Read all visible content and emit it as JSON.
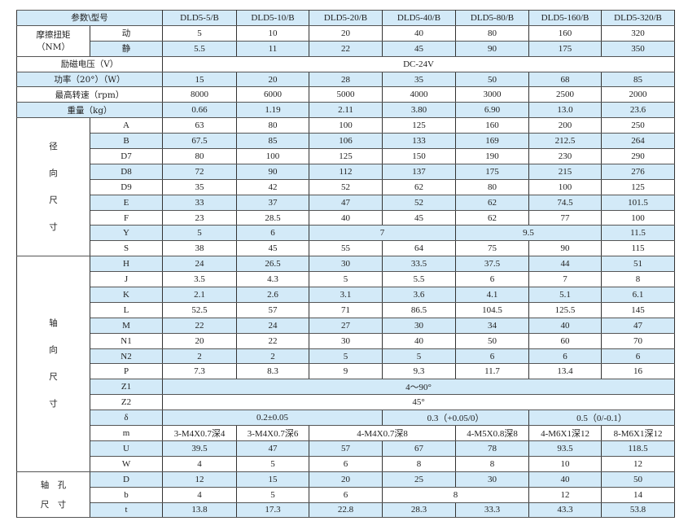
{
  "header": {
    "label": "参数\\型号",
    "models": [
      "DLD5-5/B",
      "DLD5-10/B",
      "DLD5-20/B",
      "DLD5-40/B",
      "DLD5-80/B",
      "DLD5-160/B",
      "DLD5-320/B"
    ]
  },
  "colors": {
    "row_highlight": "#d3eaf8",
    "border": "#333333"
  },
  "torque": {
    "label": "摩擦扭矩\n（NM）",
    "rows": [
      {
        "sub": "动",
        "cells": [
          {
            "v": "5"
          },
          {
            "v": "10"
          },
          {
            "v": "20"
          },
          {
            "v": "40"
          },
          {
            "v": "80"
          },
          {
            "v": "160"
          },
          {
            "v": "320"
          }
        ]
      },
      {
        "sub": "静",
        "cells": [
          {
            "v": "5.5"
          },
          {
            "v": "11"
          },
          {
            "v": "22"
          },
          {
            "v": "45"
          },
          {
            "v": "90"
          },
          {
            "v": "175"
          },
          {
            "v": "350"
          }
        ]
      }
    ]
  },
  "general": [
    {
      "label": "励磁电压（V）",
      "cells": [
        {
          "v": "DC-24V",
          "span": 7
        }
      ]
    },
    {
      "label": "功率（20°）（W）",
      "cells": [
        {
          "v": "15"
        },
        {
          "v": "20"
        },
        {
          "v": "28"
        },
        {
          "v": "35"
        },
        {
          "v": "50"
        },
        {
          "v": "68"
        },
        {
          "v": "85"
        }
      ]
    },
    {
      "label": "最高转速（rpm）",
      "cells": [
        {
          "v": "8000"
        },
        {
          "v": "6000"
        },
        {
          "v": "5000"
        },
        {
          "v": "4000"
        },
        {
          "v": "3000"
        },
        {
          "v": "2500"
        },
        {
          "v": "2000"
        }
      ]
    },
    {
      "label": "重量（kg）",
      "cells": [
        {
          "v": "0.66"
        },
        {
          "v": "1.19"
        },
        {
          "v": "2.11"
        },
        {
          "v": "3.80"
        },
        {
          "v": "6.90"
        },
        {
          "v": "13.0"
        },
        {
          "v": "23.6"
        }
      ]
    }
  ],
  "sections": [
    {
      "label": "径\n\n向\n\n尺\n\n寸",
      "rows": [
        {
          "sub": "A",
          "cells": [
            {
              "v": "63"
            },
            {
              "v": "80"
            },
            {
              "v": "100"
            },
            {
              "v": "125"
            },
            {
              "v": "160"
            },
            {
              "v": "200"
            },
            {
              "v": "250"
            }
          ]
        },
        {
          "sub": "B",
          "cells": [
            {
              "v": "67.5"
            },
            {
              "v": "85"
            },
            {
              "v": "106"
            },
            {
              "v": "133"
            },
            {
              "v": "169"
            },
            {
              "v": "212.5"
            },
            {
              "v": "264"
            }
          ]
        },
        {
          "sub": "D7",
          "cells": [
            {
              "v": "80"
            },
            {
              "v": "100"
            },
            {
              "v": "125"
            },
            {
              "v": "150"
            },
            {
              "v": "190"
            },
            {
              "v": "230"
            },
            {
              "v": "290"
            }
          ]
        },
        {
          "sub": "D8",
          "cells": [
            {
              "v": "72"
            },
            {
              "v": "90"
            },
            {
              "v": "112"
            },
            {
              "v": "137"
            },
            {
              "v": "175"
            },
            {
              "v": "215"
            },
            {
              "v": "276"
            }
          ]
        },
        {
          "sub": "D9",
          "cells": [
            {
              "v": "35"
            },
            {
              "v": "42"
            },
            {
              "v": "52"
            },
            {
              "v": "62"
            },
            {
              "v": "80"
            },
            {
              "v": "100"
            },
            {
              "v": "125"
            }
          ]
        },
        {
          "sub": "E",
          "cells": [
            {
              "v": "33"
            },
            {
              "v": "37"
            },
            {
              "v": "47"
            },
            {
              "v": "52"
            },
            {
              "v": "62"
            },
            {
              "v": "74.5"
            },
            {
              "v": "101.5"
            }
          ]
        },
        {
          "sub": "F",
          "cells": [
            {
              "v": "23"
            },
            {
              "v": "28.5"
            },
            {
              "v": "40"
            },
            {
              "v": "45"
            },
            {
              "v": "62"
            },
            {
              "v": "77"
            },
            {
              "v": "100"
            }
          ]
        },
        {
          "sub": "Y",
          "cells": [
            {
              "v": "5"
            },
            {
              "v": "6"
            },
            {
              "v": "7",
              "span": 2
            },
            {
              "v": "9.5",
              "span": 2
            },
            {
              "v": "11.5"
            }
          ]
        },
        {
          "sub": "S",
          "cells": [
            {
              "v": "38"
            },
            {
              "v": "45"
            },
            {
              "v": "55"
            },
            {
              "v": "64"
            },
            {
              "v": "75"
            },
            {
              "v": "90"
            },
            {
              "v": "115"
            }
          ]
        }
      ]
    },
    {
      "label": "轴\n\n向\n\n尺\n\n寸",
      "rows": [
        {
          "sub": "H",
          "cells": [
            {
              "v": "24"
            },
            {
              "v": "26.5"
            },
            {
              "v": "30"
            },
            {
              "v": "33.5"
            },
            {
              "v": "37.5"
            },
            {
              "v": "44"
            },
            {
              "v": "51"
            }
          ]
        },
        {
          "sub": "J",
          "cells": [
            {
              "v": "3.5"
            },
            {
              "v": "4.3"
            },
            {
              "v": "5"
            },
            {
              "v": "5.5"
            },
            {
              "v": "6"
            },
            {
              "v": "7"
            },
            {
              "v": "8"
            }
          ]
        },
        {
          "sub": "K",
          "cells": [
            {
              "v": "2.1"
            },
            {
              "v": "2.6"
            },
            {
              "v": "3.1"
            },
            {
              "v": "3.6"
            },
            {
              "v": "4.1"
            },
            {
              "v": "5.1"
            },
            {
              "v": "6.1"
            }
          ]
        },
        {
          "sub": "L",
          "cells": [
            {
              "v": "52.5"
            },
            {
              "v": "57"
            },
            {
              "v": "71"
            },
            {
              "v": "86.5"
            },
            {
              "v": "104.5"
            },
            {
              "v": "125.5"
            },
            {
              "v": "145"
            }
          ]
        },
        {
          "sub": "M",
          "cells": [
            {
              "v": "22"
            },
            {
              "v": "24"
            },
            {
              "v": "27"
            },
            {
              "v": "30"
            },
            {
              "v": "34"
            },
            {
              "v": "40"
            },
            {
              "v": "47"
            }
          ]
        },
        {
          "sub": "N1",
          "cells": [
            {
              "v": "20"
            },
            {
              "v": "22"
            },
            {
              "v": "30"
            },
            {
              "v": "40"
            },
            {
              "v": "50"
            },
            {
              "v": "60"
            },
            {
              "v": "70"
            }
          ]
        },
        {
          "sub": "N2",
          "cells": [
            {
              "v": "2"
            },
            {
              "v": "2"
            },
            {
              "v": "5"
            },
            {
              "v": "5"
            },
            {
              "v": "6"
            },
            {
              "v": "6"
            },
            {
              "v": "6"
            }
          ]
        },
        {
          "sub": "P",
          "cells": [
            {
              "v": "7.3"
            },
            {
              "v": "8.3"
            },
            {
              "v": "9"
            },
            {
              "v": "9.3"
            },
            {
              "v": "11.7"
            },
            {
              "v": "13.4"
            },
            {
              "v": "16"
            }
          ]
        },
        {
          "sub": "Z1",
          "cells": [
            {
              "v": "4～90°",
              "span": 7
            }
          ]
        },
        {
          "sub": "Z2",
          "cells": [
            {
              "v": "45°",
              "span": 7
            }
          ]
        },
        {
          "sub": "δ",
          "cells": [
            {
              "v": "0.2±0.05",
              "span": 3
            },
            {
              "v": "0.3（+0.05/0）",
              "span": 2
            },
            {
              "v": "0.5（0/-0.1）",
              "span": 2
            }
          ]
        },
        {
          "sub": "m",
          "cells": [
            {
              "v": "3-M4X0.7深4"
            },
            {
              "v": "3-M4X0.7深6"
            },
            {
              "v": "4-M4X0.7深8",
              "span": 2
            },
            {
              "v": "4-M5X0.8深8"
            },
            {
              "v": "4-M6X1深12"
            },
            {
              "v": "8-M6X1深12"
            }
          ]
        },
        {
          "sub": "U",
          "cells": [
            {
              "v": "39.5"
            },
            {
              "v": "47"
            },
            {
              "v": "57"
            },
            {
              "v": "67"
            },
            {
              "v": "78"
            },
            {
              "v": "93.5"
            },
            {
              "v": "118.5"
            }
          ]
        },
        {
          "sub": "W",
          "cells": [
            {
              "v": "4"
            },
            {
              "v": "5"
            },
            {
              "v": "6"
            },
            {
              "v": "8"
            },
            {
              "v": "8"
            },
            {
              "v": "10"
            },
            {
              "v": "12"
            }
          ]
        }
      ]
    },
    {
      "label": "轴　孔\n尺　寸",
      "rows": [
        {
          "sub": "D",
          "cells": [
            {
              "v": "12"
            },
            {
              "v": "15"
            },
            {
              "v": "20"
            },
            {
              "v": "25"
            },
            {
              "v": "30"
            },
            {
              "v": "40"
            },
            {
              "v": "50"
            }
          ]
        },
        {
          "sub": "b",
          "cells": [
            {
              "v": "4"
            },
            {
              "v": "5"
            },
            {
              "v": "6"
            },
            {
              "v": "8",
              "span": 2
            },
            {
              "v": "12"
            },
            {
              "v": "14"
            }
          ]
        },
        {
          "sub": "t",
          "cells": [
            {
              "v": "13.8"
            },
            {
              "v": "17.3"
            },
            {
              "v": "22.8"
            },
            {
              "v": "28.3"
            },
            {
              "v": "33.3"
            },
            {
              "v": "43.3"
            },
            {
              "v": "53.8"
            }
          ]
        }
      ]
    }
  ]
}
